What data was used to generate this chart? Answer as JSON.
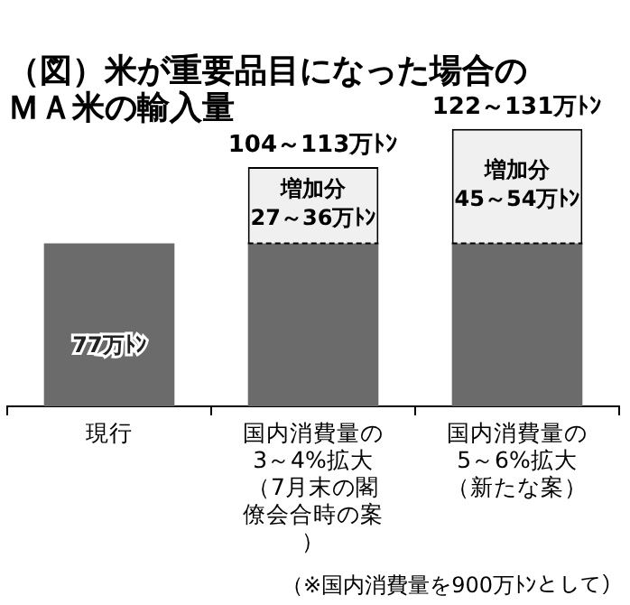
{
  "chart_data": {
    "type": "bar",
    "title": "（図）米が重要品目になった場合のＭＡ米の輸入量",
    "categories": [
      "現行",
      "国内消費量の3～4%拡大（7月末の閣僚会合時の案）",
      "国内消費量の5～6%拡大（新たな案）"
    ],
    "stacked": true,
    "grid": false,
    "legend": false,
    "tick_labels": "x",
    "series": [
      {
        "color": "#6b6b6b",
        "values": [
          77,
          77,
          77
        ],
        "value_labels": [
          "77万ﾄﾝ",
          null,
          null
        ]
      },
      {
        "color": "#f0f0f0",
        "values": [
          null,
          36,
          54
        ],
        "value_labels": [
          null,
          "増加分\n27～36万ﾄﾝ",
          "増加分\n45～54万ﾄﾝ"
        ]
      }
    ],
    "totals": [
      null,
      "104～113万ﾄﾝ",
      "122～131万ﾄﾝ"
    ],
    "annotations": [
      "（※国内消費量を900万ﾄﾝとして）"
    ]
  }
}
